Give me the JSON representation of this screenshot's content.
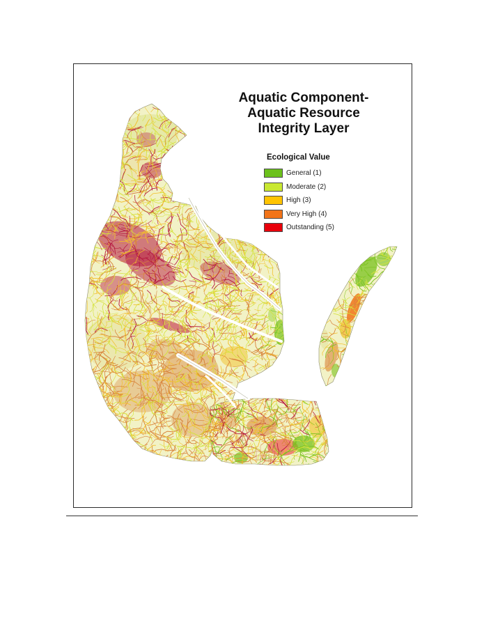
{
  "map": {
    "title_lines": [
      "Aquatic Component-",
      "Aquatic Resource",
      "Integrity Layer"
    ],
    "legend": {
      "title": "Ecological Value",
      "items": [
        {
          "label": "General (1)",
          "color": "#6cc11c"
        },
        {
          "label": "Moderate (2)",
          "color": "#c9e832"
        },
        {
          "label": "High (3)",
          "color": "#ffc400"
        },
        {
          "label": "Very High (4)",
          "color": "#f27419"
        },
        {
          "label": "Outstanding (5)",
          "color": "#e8000b"
        }
      ]
    },
    "land_fill": "#f0f0c0",
    "stream_palette": {
      "general": "#7ac21e",
      "moderate": "#d4e23a",
      "high": "#f2bf2a",
      "very_high": "#d8833a",
      "outstanding": "#b5183e"
    }
  }
}
